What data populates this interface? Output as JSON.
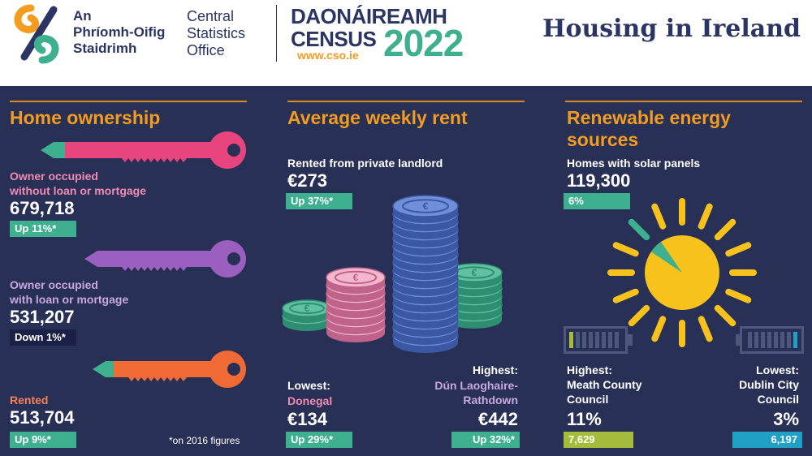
{
  "header": {
    "cso_irish": [
      "An",
      "Phríomh-Oifig",
      "Staidrimh"
    ],
    "cso_english": [
      "Central",
      "Statistics",
      "Office"
    ],
    "census_line1": "DAONÁIREAMH",
    "census_line2": "CENSUS",
    "census_year": "2022",
    "census_url": "www.cso.ie",
    "page_title": "Housing in Ireland"
  },
  "home_ownership": {
    "title": "Home ownership",
    "items": [
      {
        "label_line1": "Owner occupied",
        "label_line2": "without loan or mortgage",
        "value": "679,718",
        "change": "Up 11%*",
        "label_color": "#f08cb4",
        "key_color": "#e8457f"
      },
      {
        "label_line1": "Owner occupied",
        "label_line2": "with loan or mortgage",
        "value": "531,207",
        "change": "Down 1%*",
        "label_color": "#c8a8e0",
        "key_color": "#9b5fc0"
      },
      {
        "label_line1": "Rented",
        "label_line2": "",
        "value": "513,704",
        "change": "Up 9%*",
        "label_color": "#f4825a",
        "key_color": "#ef6a35"
      }
    ],
    "footnote": "*on 2016 figures"
  },
  "weekly_rent": {
    "title": "Average weekly rent",
    "private_label": "Rented from private landlord",
    "private_value": "€273",
    "private_change": "Up 37%*",
    "lowest_label": "Lowest:",
    "lowest_place": "Donegal",
    "lowest_value": "€134",
    "lowest_change": "Up 29%*",
    "highest_label": "Highest:",
    "highest_place_line1": "Dún Laoghaire-",
    "highest_place_line2": "Rathdown",
    "highest_value": "€442",
    "highest_change": "Up 32%*"
  },
  "renewable": {
    "title_line1": "Renewable energy",
    "title_line2": "sources",
    "solar_label": "Homes with solar panels",
    "solar_value": "119,300",
    "solar_share": "6%",
    "solar_share_fraction": 0.06,
    "highest_label": "Highest:",
    "highest_place_line1": "Meath County",
    "highest_place_line2": "Council",
    "highest_pct": "11%",
    "highest_count": "7,629",
    "lowest_label": "Lowest:",
    "lowest_place_line1": "Dublin City",
    "lowest_place_line2": "Council",
    "lowest_pct": "3%",
    "lowest_count": "6,197"
  },
  "colors": {
    "navy": "#283056",
    "orange": "#f39c1f",
    "green": "#3fb08f",
    "sun": "#f7c21b",
    "olive": "#a3bd3a",
    "teal": "#1fa0c4"
  }
}
